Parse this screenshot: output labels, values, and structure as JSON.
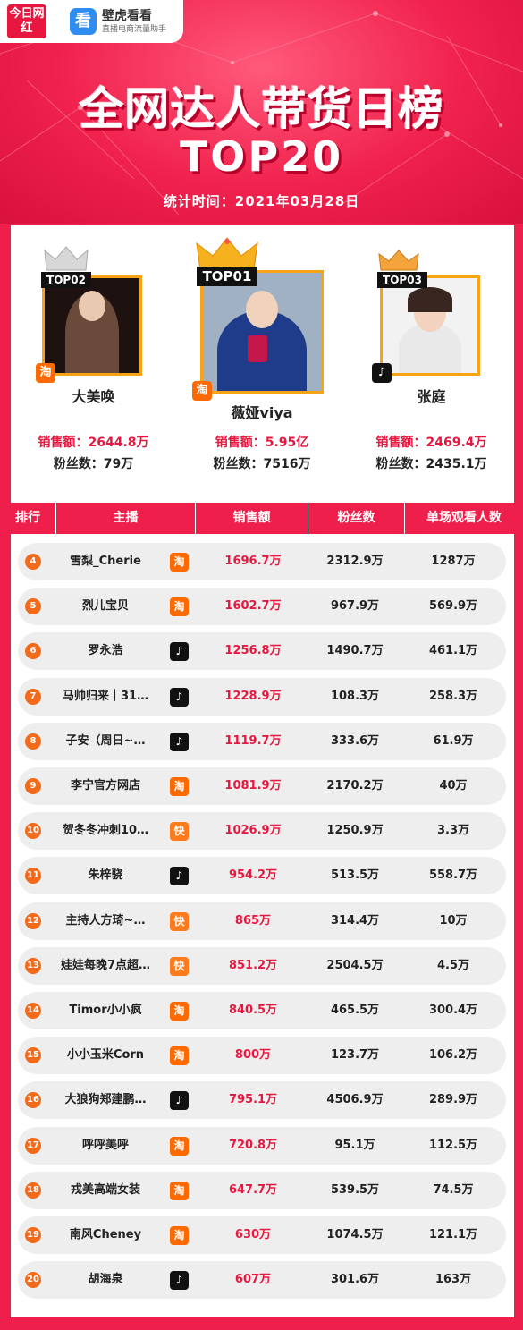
{
  "brand": {
    "logo1": "今日网红",
    "logo2_icon": "看",
    "logo2_title": "壁虎看看",
    "logo2_sub": "直播电商流量助手"
  },
  "title": "全网达人带货日榜",
  "subtitle": "TOP20",
  "stat_time": "统计时间：2021年03月28日",
  "colors": {
    "accent": "#ee1f4b",
    "sales": "#e8173f",
    "gold": "#f6a316",
    "taobao": "#ff6a00",
    "douyin": "#111111",
    "kuaishou": "#ff7a1a",
    "rank": "#f26a1a"
  },
  "podium": {
    "first": {
      "tag": "TOP01",
      "name": "薇娅viya",
      "sales": "销售额：5.95亿",
      "fans": "粉丝数：7516万",
      "platform_icon": "taobao-icon",
      "platform": "淘"
    },
    "second": {
      "tag": "TOP02",
      "name": "大美唤",
      "sales": "销售额：2644.8万",
      "fans": "粉丝数：79万",
      "platform_icon": "taobao-icon",
      "platform": "淘"
    },
    "third": {
      "tag": "TOP03",
      "name": "张庭",
      "sales": "销售额：2469.4万",
      "fans": "粉丝数：2435.1万",
      "platform_icon": "douyin-icon",
      "platform": "♪"
    }
  },
  "table_header": [
    "排行",
    "主播",
    "销售额",
    "粉丝数",
    "单场观看人数"
  ],
  "rows": [
    {
      "rank": "4",
      "name": "雪梨_Cherie",
      "platform": "taobao-icon",
      "sales": "1696.7万",
      "fans": "2312.9万",
      "views": "1287万"
    },
    {
      "rank": "5",
      "name": "烈儿宝贝",
      "platform": "taobao-icon",
      "sales": "1602.7万",
      "fans": "967.9万",
      "views": "569.9万"
    },
    {
      "rank": "6",
      "name": "罗永浩",
      "platform": "douyin-icon",
      "sales": "1256.8万",
      "fans": "1490.7万",
      "views": "461.1万"
    },
    {
      "rank": "7",
      "name": "马帅归来｜31…",
      "platform": "douyin-icon",
      "sales": "1228.9万",
      "fans": "108.3万",
      "views": "258.3万"
    },
    {
      "rank": "8",
      "name": "子安（周日~…",
      "platform": "douyin-icon",
      "sales": "1119.7万",
      "fans": "333.6万",
      "views": "61.9万"
    },
    {
      "rank": "9",
      "name": "李宁官方网店",
      "platform": "taobao-icon",
      "sales": "1081.9万",
      "fans": "2170.2万",
      "views": "40万"
    },
    {
      "rank": "10",
      "name": "贺冬冬冲刺10…",
      "platform": "kuaishou-icon",
      "sales": "1026.9万",
      "fans": "1250.9万",
      "views": "3.3万"
    },
    {
      "rank": "11",
      "name": "朱梓骁",
      "platform": "douyin-icon",
      "sales": "954.2万",
      "fans": "513.5万",
      "views": "558.7万"
    },
    {
      "rank": "12",
      "name": "主持人方琦~…",
      "platform": "kuaishou-icon",
      "sales": "865万",
      "fans": "314.4万",
      "views": "10万"
    },
    {
      "rank": "13",
      "name": "娃娃每晚7点超…",
      "platform": "kuaishou-icon",
      "sales": "851.2万",
      "fans": "2504.5万",
      "views": "4.5万"
    },
    {
      "rank": "14",
      "name": "Timor小小疯",
      "platform": "taobao-icon",
      "sales": "840.5万",
      "fans": "465.5万",
      "views": "300.4万"
    },
    {
      "rank": "15",
      "name": "小小玉米Corn",
      "platform": "taobao-icon",
      "sales": "800万",
      "fans": "123.7万",
      "views": "106.2万"
    },
    {
      "rank": "16",
      "name": "大狼狗郑建鹏…",
      "platform": "douyin-icon",
      "sales": "795.1万",
      "fans": "4506.9万",
      "views": "289.9万"
    },
    {
      "rank": "17",
      "name": "呼呼美呼",
      "platform": "taobao-icon",
      "sales": "720.8万",
      "fans": "95.1万",
      "views": "112.5万"
    },
    {
      "rank": "18",
      "name": "戎美高端女装",
      "platform": "taobao-icon",
      "sales": "647.7万",
      "fans": "539.5万",
      "views": "74.5万"
    },
    {
      "rank": "19",
      "name": "南风Cheney",
      "platform": "taobao-icon",
      "sales": "630万",
      "fans": "1074.5万",
      "views": "121.1万"
    },
    {
      "rank": "20",
      "name": "胡海泉",
      "platform": "douyin-icon",
      "sales": "607万",
      "fans": "301.6万",
      "views": "163万"
    }
  ]
}
